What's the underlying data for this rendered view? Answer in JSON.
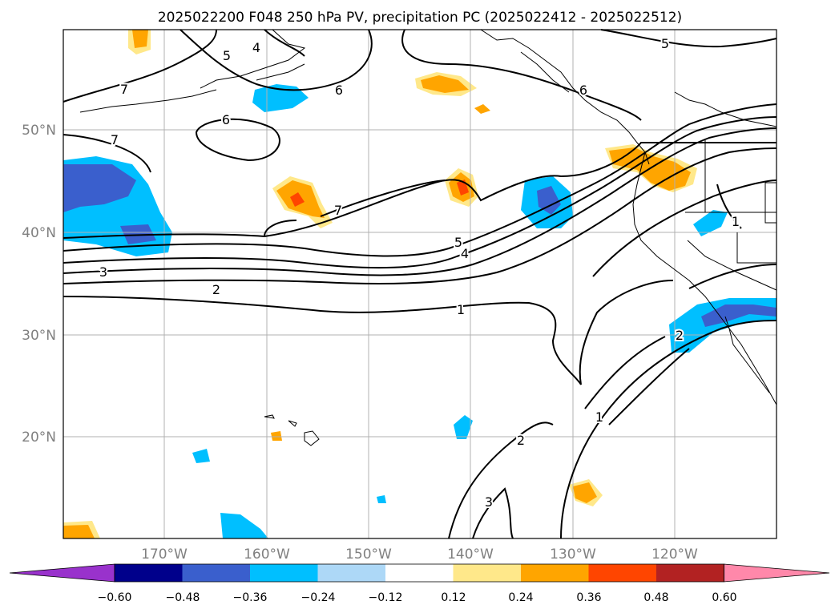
{
  "title": "2025022200 F048 250 hPa PV, precipitation PC (2025022412 - 2025022512)",
  "lat_labels": [
    "50°N",
    "40°N",
    "30°N",
    "20°N"
  ],
  "lon_labels": [
    "170°W",
    "160°W",
    "150°W",
    "140°W",
    "130°W",
    "120°W"
  ],
  "contour_labels": [
    "7",
    "7",
    "7",
    "6",
    "6",
    "6",
    "5",
    "5",
    "5",
    "4",
    "4",
    "3",
    "3",
    "2",
    "2",
    "2",
    "1",
    "1",
    "1"
  ],
  "colorbar": {
    "tick_labels": [
      "−0.60",
      "−0.48",
      "−0.36",
      "−0.24",
      "−0.12",
      "0.12",
      "0.24",
      "0.36",
      "0.48",
      "0.60"
    ],
    "colors": [
      "#9932cc",
      "#00008b",
      "#3a5fcd",
      "#00bfff",
      "#add8f7",
      "#ffffff",
      "#ffe88a",
      "#ffa500",
      "#ff4500",
      "#b22222",
      "#ff88aa"
    ]
  },
  "colors": {
    "land_outline": "#000000",
    "contour": "#000000",
    "grid": "#b0b0b0",
    "axis_label": "#808080"
  }
}
